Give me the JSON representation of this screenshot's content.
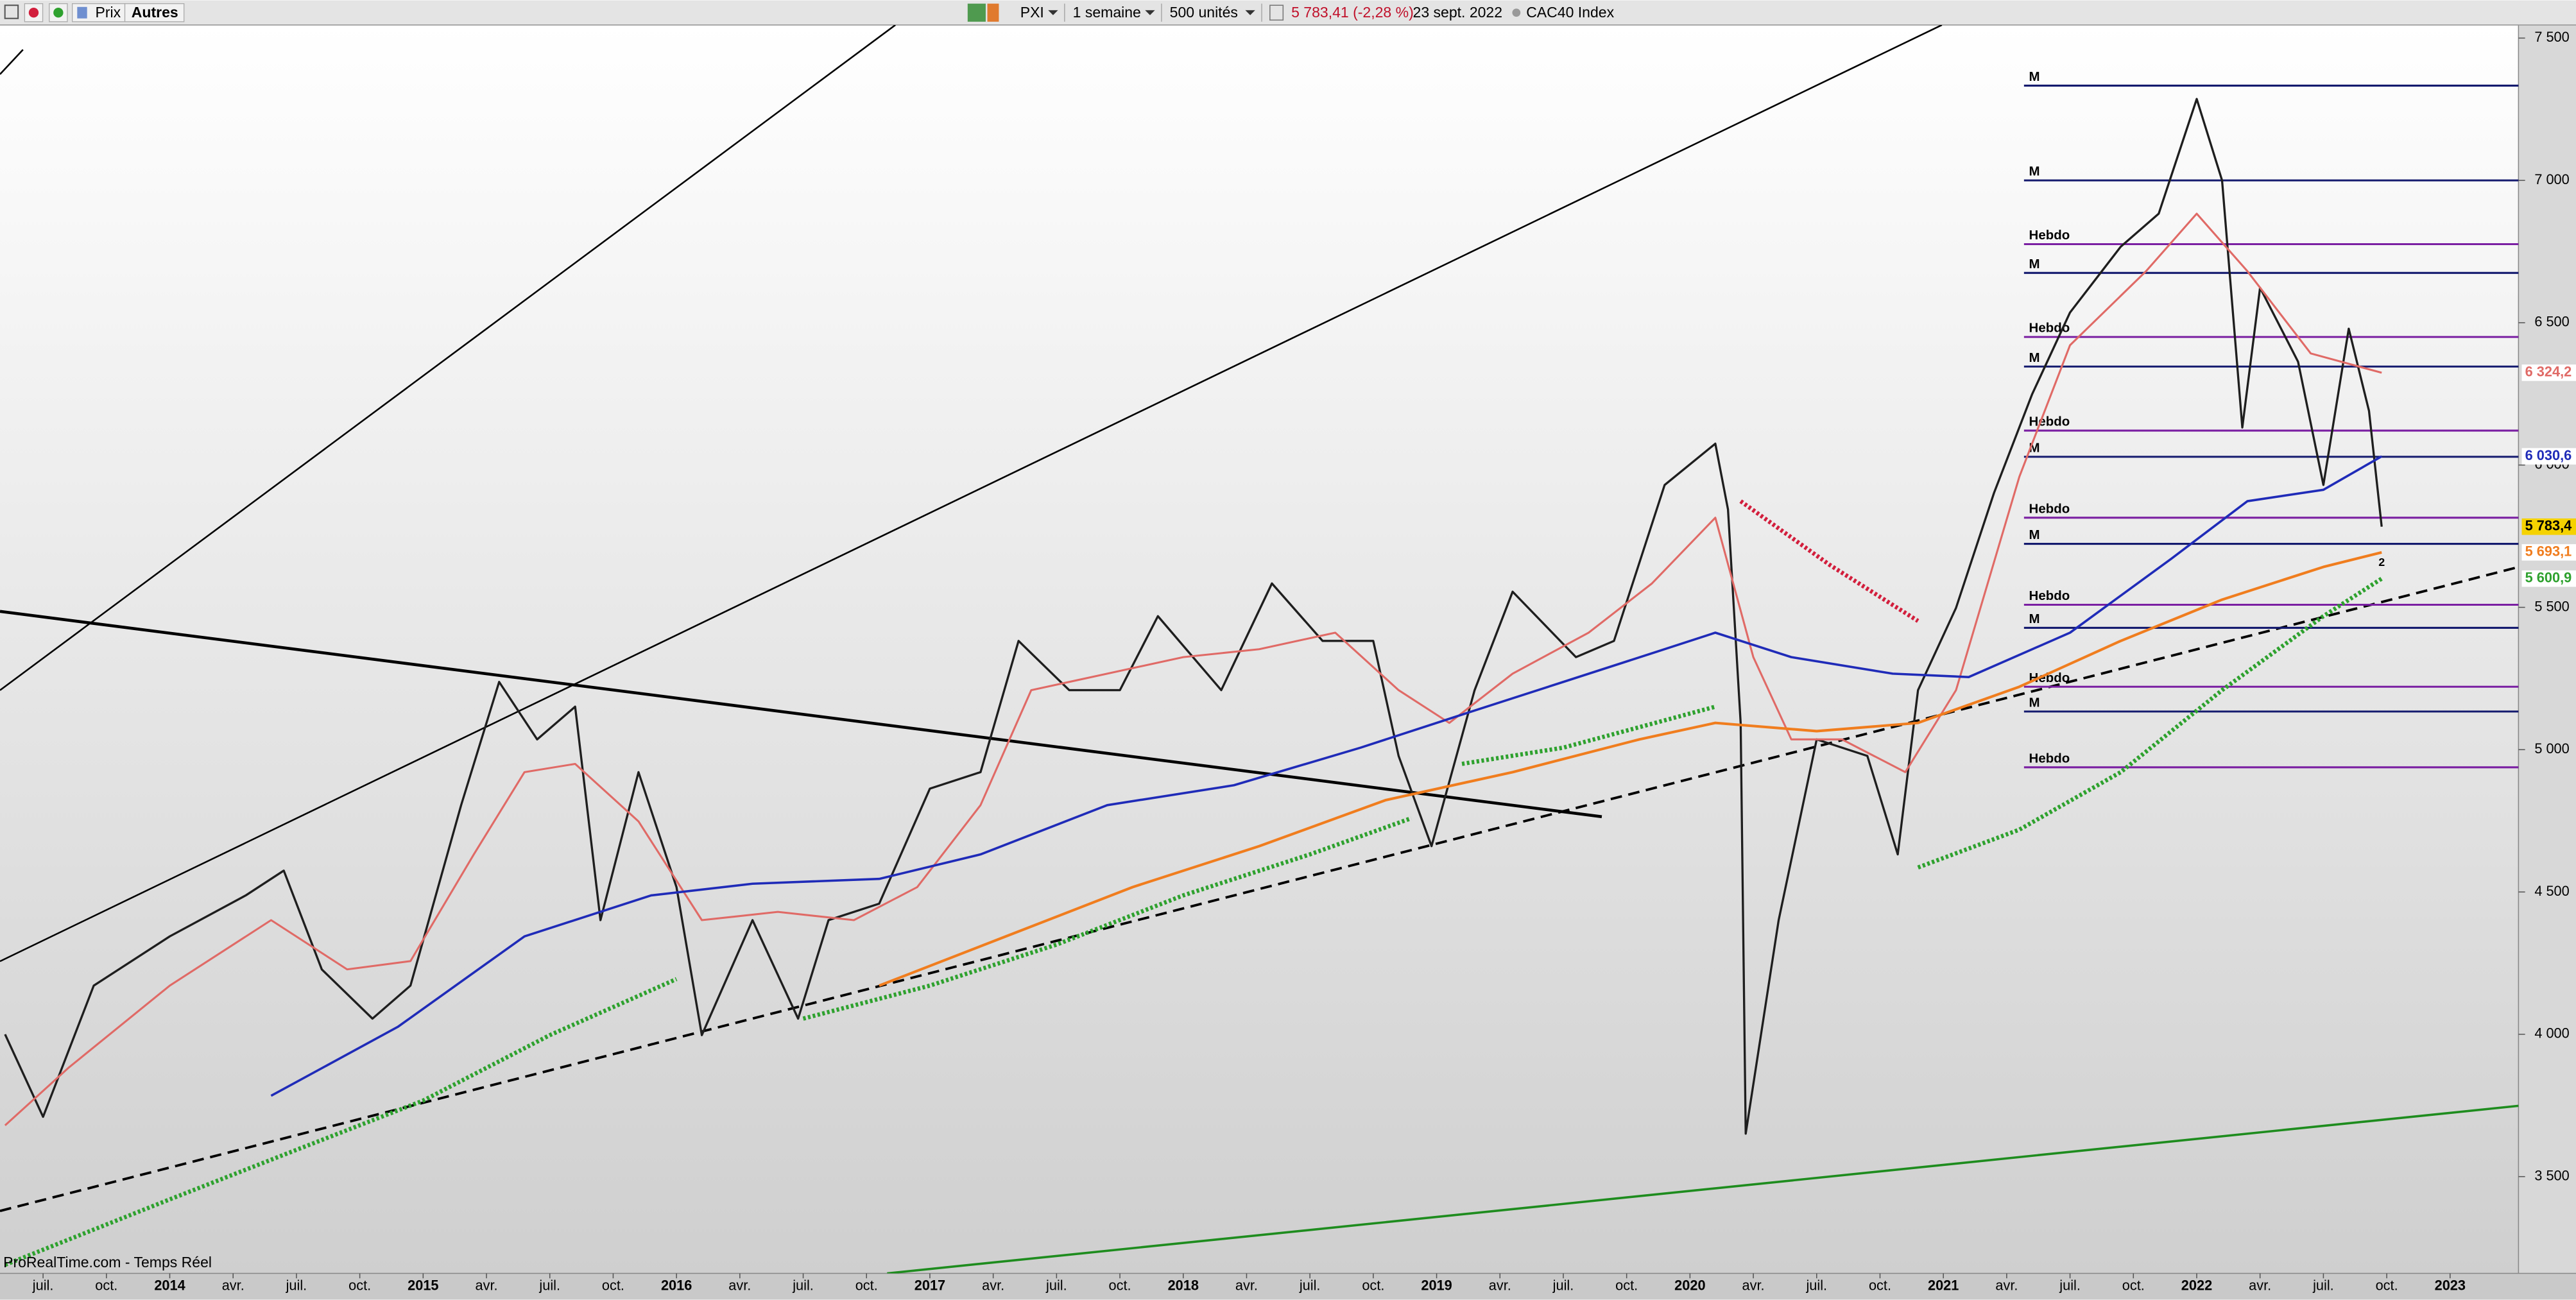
{
  "toolbar": {
    "buttons": [
      "Prix",
      "Autres"
    ],
    "symbol": "PXI",
    "period": "1 semaine",
    "units": "500 unités",
    "quote": "5 783,41 (-2,28 %)",
    "date": "23 sept. 2022",
    "index": "CAC40 Index"
  },
  "footer": "ProRealTime.com - Temps Réel",
  "chart_data": {
    "type": "line",
    "xlim": [
      2013.33,
      2023.27
    ],
    "ylim": [
      3160,
      7546
    ],
    "xticks": [
      {
        "value": 2013.5,
        "label": "juil."
      },
      {
        "value": 2013.75,
        "label": "oct."
      },
      2014,
      {
        "value": 2014.25,
        "label": "avr."
      },
      {
        "value": 2014.5,
        "label": "juil."
      },
      {
        "value": 2014.75,
        "label": "oct."
      },
      2015,
      {
        "value": 2015.25,
        "label": "avr."
      },
      {
        "value": 2015.5,
        "label": "juil."
      },
      {
        "value": 2015.75,
        "label": "oct."
      },
      2016,
      {
        "value": 2016.25,
        "label": "avr."
      },
      {
        "value": 2016.5,
        "label": "juil."
      },
      {
        "value": 2016.75,
        "label": "oct."
      },
      2017,
      {
        "value": 2017.25,
        "label": "avr."
      },
      {
        "value": 2017.5,
        "label": "juil."
      },
      {
        "value": 2017.75,
        "label": "oct."
      },
      2018,
      {
        "value": 2018.25,
        "label": "avr."
      },
      {
        "value": 2018.5,
        "label": "juil."
      },
      {
        "value": 2018.75,
        "label": "oct."
      },
      2019,
      {
        "value": 2019.25,
        "label": "avr."
      },
      {
        "value": 2019.5,
        "label": "juil."
      },
      {
        "value": 2019.75,
        "label": "oct."
      },
      2020,
      {
        "value": 2020.25,
        "label": "avr."
      },
      {
        "value": 2020.5,
        "label": "juil."
      },
      {
        "value": 2020.75,
        "label": "oct."
      },
      2021,
      {
        "value": 2021.25,
        "label": "avr."
      },
      {
        "value": 2021.5,
        "label": "juil."
      },
      {
        "value": 2021.75,
        "label": "oct."
      },
      2022,
      {
        "value": 2022.25,
        "label": "avr."
      },
      {
        "value": 2022.5,
        "label": "juil."
      },
      {
        "value": 2022.75,
        "label": "oct."
      },
      2023
    ],
    "yticks": [
      {
        "value": 3500,
        "label": "3 500"
      },
      {
        "value": 4000,
        "label": "4 000"
      },
      {
        "value": 4500,
        "label": "4 500"
      },
      {
        "value": 5000,
        "label": "5 000"
      },
      {
        "value": 5500,
        "label": "5 500"
      },
      {
        "value": 6000,
        "label": "6 000"
      },
      {
        "value": 6500,
        "label": "6 500"
      },
      {
        "value": 7000,
        "label": "7 000"
      },
      {
        "value": 7500,
        "label": "7 500"
      }
    ],
    "series": [
      {
        "color": "#1e1e1e",
        "style": "solid",
        "width": 1.3,
        "x": [
          2013.35,
          2013.5,
          2013.7,
          2014.0,
          2014.3,
          2014.45,
          2014.6,
          2014.8,
          2014.95,
          2015.15,
          2015.3,
          2015.45,
          2015.6,
          2015.7,
          2015.85,
          2016.0,
          2016.1,
          2016.3,
          2016.48,
          2016.6,
          2016.8,
          2017.0,
          2017.2,
          2017.35,
          2017.55,
          2017.75,
          2017.9,
          2018.15,
          2018.35,
          2018.55,
          2018.75,
          2018.85,
          2018.98,
          2019.15,
          2019.3,
          2019.55,
          2019.7,
          2019.9,
          2020.1,
          2020.15,
          2020.2,
          2020.22,
          2020.35,
          2020.5,
          2020.7,
          2020.82,
          2020.9,
          2021.05,
          2021.2,
          2021.35,
          2021.5,
          2021.7,
          2021.85,
          2022.0,
          2022.1,
          2022.18,
          2022.25,
          2022.4,
          2022.5,
          2022.6,
          2022.68,
          2022.73
        ],
        "values": [
          4000,
          3710,
          4171,
          4344,
          4488,
          4575,
          4228,
          4055,
          4171,
          4805,
          5238,
          5036,
          5151,
          4401,
          4921,
          4517,
          3997,
          4401,
          4055,
          4401,
          4459,
          4863,
          4921,
          5382,
          5209,
          5209,
          5469,
          5209,
          5584,
          5382,
          5382,
          4978,
          4661,
          5209,
          5555,
          5325,
          5382,
          5930,
          6075,
          5844,
          5094,
          3651,
          4401,
          5036,
          4978,
          4632,
          5209,
          5498,
          5902,
          6248,
          6536,
          6767,
          6883,
          7286,
          7000,
          6132,
          6623,
          6363,
          5930,
          6479,
          6190,
          5783.41
        ]
      },
      {
        "color": "#e06a66",
        "style": "solid",
        "width": 1.2,
        "x": [
          2013.35,
          2013.6,
          2014.0,
          2014.4,
          2014.7,
          2014.95,
          2015.2,
          2015.4,
          2015.6,
          2015.85,
          2016.1,
          2016.4,
          2016.7,
          2016.95,
          2017.2,
          2017.4,
          2017.7,
          2018.0,
          2018.3,
          2018.6,
          2018.85,
          2019.05,
          2019.3,
          2019.6,
          2019.85,
          2020.1,
          2020.25,
          2020.4,
          2020.6,
          2020.85,
          2021.05,
          2021.3,
          2021.5,
          2021.8,
          2022.0,
          2022.2,
          2022.45,
          2022.73
        ],
        "values": [
          3680,
          3882,
          4171,
          4401,
          4228,
          4257,
          4632,
          4921,
          4950,
          4748,
          4401,
          4430,
          4401,
          4517,
          4805,
          5209,
          5267,
          5325,
          5353,
          5411,
          5209,
          5094,
          5267,
          5411,
          5584,
          5815,
          5325,
          5036,
          5036,
          4921,
          5209,
          5959,
          6421,
          6681,
          6883,
          6681,
          6392,
          6324.2
        ]
      },
      {
        "color": "#1f2bb8",
        "style": "solid",
        "width": 1.4,
        "x": [
          2014.4,
          2014.9,
          2015.4,
          2015.9,
          2016.3,
          2016.8,
          2017.2,
          2017.7,
          2018.2,
          2018.7,
          2019.1,
          2019.5,
          2019.9,
          2020.1,
          2020.4,
          2020.8,
          2021.1,
          2021.5,
          2021.9,
          2022.2,
          2022.5,
          2022.73
        ],
        "values": [
          3784,
          4026,
          4344,
          4488,
          4529,
          4546,
          4632,
          4805,
          4875,
          5007,
          5123,
          5238,
          5353,
          5411,
          5325,
          5267,
          5255,
          5411,
          5671,
          5873,
          5913,
          6030.6
        ]
      },
      {
        "color": "#f07d1e",
        "style": "solid",
        "width": 1.6,
        "x": [
          2016.8,
          2017.3,
          2017.8,
          2018.3,
          2018.8,
          2019.3,
          2019.8,
          2020.1,
          2020.5,
          2020.9,
          2021.3,
          2021.7,
          2022.1,
          2022.5,
          2022.73
        ],
        "values": [
          4171,
          4344,
          4517,
          4661,
          4823,
          4921,
          5036,
          5094,
          5065,
          5094,
          5221,
          5382,
          5527,
          5642,
          5693.1
        ]
      },
      {
        "color": "#2ea12e",
        "style": "dotted",
        "width": 2.6,
        "x": [
          2013.35,
          2014.0,
          2014.5,
          2015.0,
          2015.5,
          2016.0,
          2016.3,
          2016.5,
          2017.0,
          2017.5,
          2018.0,
          2018.5,
          2018.9,
          2019.0,
          2019.1,
          2019.5,
          2020.1,
          2020.5,
          2020.9,
          2021.3,
          2021.7,
          2022.1,
          2022.5,
          2022.73
        ],
        "values": [
          3190,
          3420,
          3594,
          3767,
          3997,
          4194,
          null,
          4055,
          4171,
          4315,
          4488,
          4632,
          4759,
          null,
          4950,
          5007,
          5151,
          null,
          4586,
          4719,
          4921,
          5209,
          5469,
          5600.9
        ]
      },
      {
        "color": "#d21e3c",
        "style": "dotted",
        "width": 2.6,
        "x": [
          2020.2,
          2020.55,
          2020.9
        ],
        "values": [
          5873,
          5650,
          5452
        ]
      }
    ],
    "levels": [
      {
        "label": "M",
        "value": 7333,
        "color": "#141a6e"
      },
      {
        "label": "M",
        "value": 7000,
        "color": "#141a6e"
      },
      {
        "label": "Hebdo",
        "value": 6776,
        "color": "#7a1fa2"
      },
      {
        "label": "M",
        "value": 6675,
        "color": "#141a6e"
      },
      {
        "label": "Hebdo",
        "value": 6450,
        "color": "#7a1fa2"
      },
      {
        "label": "M",
        "value": 6346,
        "color": "#141a6e"
      },
      {
        "label": "Hebdo",
        "value": 6121,
        "color": "#7a1fa2"
      },
      {
        "label": "M",
        "value": 6029,
        "color": "#141a6e"
      },
      {
        "label": "Hebdo",
        "value": 5815,
        "color": "#7a1fa2"
      },
      {
        "label": "M",
        "value": 5723,
        "color": "#141a6e"
      },
      {
        "label": "Hebdo",
        "value": 5509,
        "color": "#7a1fa2"
      },
      {
        "label": "M",
        "value": 5428,
        "color": "#141a6e"
      },
      {
        "label": "Hebdo",
        "value": 5221,
        "color": "#7a1fa2"
      },
      {
        "label": "M",
        "value": 5134,
        "color": "#141a6e"
      },
      {
        "label": "Hebdo",
        "value": 4938,
        "color": "#7a1fa2"
      }
    ],
    "price_tags": [
      {
        "value": 6324.2,
        "label": "6 324,2",
        "color": "#e06a66",
        "bg": "#ffffff"
      },
      {
        "value": 6030.6,
        "label": "6 030,6",
        "color": "#1f2bb8",
        "bg": "#ffffff"
      },
      {
        "value": 5783.4,
        "label": "5 783,4",
        "color": "#000000",
        "bg": "#f5d200"
      },
      {
        "value": 5693.1,
        "label": "5 693,1",
        "color": "#f07d1e",
        "bg": "#ffffff"
      },
      {
        "value": 5600.9,
        "label": "5 600,9",
        "color": "#2ea12e",
        "bg": "#ffffff"
      }
    ],
    "annotation": "2"
  }
}
